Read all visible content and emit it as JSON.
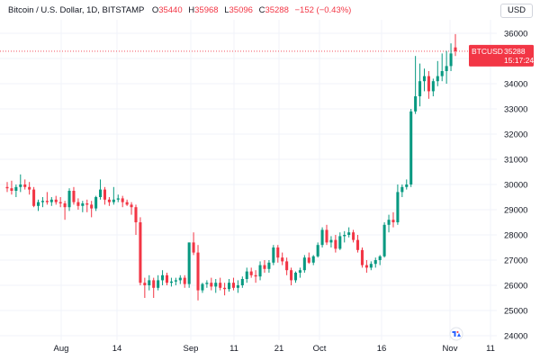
{
  "legend": {
    "symbol": "Bitcoin / U.S. Dollar, 1D, BITSTAMP",
    "open_label": "O",
    "open_value": "35440",
    "high_label": "H",
    "high_value": "35968",
    "low_label": "L",
    "low_value": "35096",
    "close_label": "C",
    "close_value": "35288",
    "change": "−152 (−0.43%)"
  },
  "currency_button": "USD",
  "price_tag": {
    "symbol": "BTCUSD",
    "price": "35288",
    "countdown": "15:17:24"
  },
  "colors": {
    "up": "#089981",
    "down": "#f23645",
    "grid": "#f0f3fa",
    "text": "#131722"
  },
  "icons": {
    "watermark": "tradingview-logo-icon"
  },
  "chart_data": {
    "type": "candlestick",
    "title": "Bitcoin / U.S. Dollar, 1D, BITSTAMP",
    "ylim": [
      24000,
      36600
    ],
    "y_ticks": [
      24000,
      25000,
      26000,
      27000,
      28000,
      29000,
      30000,
      31000,
      32000,
      33000,
      34000,
      35000,
      36000
    ],
    "x_ticks": [
      "Aug",
      "14",
      "Sep",
      "11",
      "21",
      "Oct",
      "16",
      "Nov",
      "11"
    ],
    "last_price": 35288,
    "grid": true,
    "candles": [
      [
        29900,
        30100,
        29700,
        29850
      ],
      [
        29850,
        30150,
        29600,
        29750
      ],
      [
        29750,
        30000,
        29500,
        29900
      ],
      [
        29900,
        30400,
        29700,
        30000
      ],
      [
        30000,
        30200,
        29800,
        29900
      ],
      [
        29900,
        30100,
        29600,
        29800
      ],
      [
        29800,
        29900,
        29100,
        29150
      ],
      [
        29150,
        29400,
        28950,
        29300
      ],
      [
        29300,
        29500,
        29100,
        29350
      ],
      [
        29350,
        29700,
        29200,
        29300
      ],
      [
        29300,
        29500,
        29150,
        29400
      ],
      [
        29400,
        29550,
        29200,
        29300
      ],
      [
        29300,
        29500,
        29100,
        29250
      ],
      [
        29250,
        29350,
        28600,
        29100
      ],
      [
        29100,
        29850,
        28950,
        29750
      ],
      [
        29750,
        29900,
        29200,
        29300
      ],
      [
        29300,
        29450,
        29000,
        29150
      ],
      [
        29150,
        29350,
        28900,
        29250
      ],
      [
        29250,
        29400,
        28900,
        29200
      ],
      [
        29200,
        29350,
        28700,
        29050
      ],
      [
        29050,
        29550,
        28950,
        29500
      ],
      [
        29500,
        30200,
        29400,
        29800
      ],
      [
        29800,
        29900,
        29200,
        29400
      ],
      [
        29400,
        29500,
        29150,
        29300
      ],
      [
        29300,
        29900,
        29200,
        29400
      ],
      [
        29400,
        29600,
        29300,
        29450
      ],
      [
        29450,
        29550,
        29100,
        29300
      ],
      [
        29300,
        29400,
        29150,
        29200
      ],
      [
        29200,
        29300,
        28800,
        29100
      ],
      [
        29100,
        29200,
        28000,
        28500
      ],
      [
        28500,
        28700,
        26000,
        26100
      ],
      [
        26100,
        26300,
        25500,
        26000
      ],
      [
        26000,
        26400,
        25800,
        26200
      ],
      [
        26200,
        26300,
        25500,
        25900
      ],
      [
        25900,
        26400,
        25800,
        26200
      ],
      [
        26200,
        26600,
        26000,
        26400
      ],
      [
        26400,
        26500,
        26000,
        26100
      ],
      [
        26100,
        26300,
        25950,
        26150
      ],
      [
        26150,
        26300,
        26000,
        26200
      ],
      [
        26200,
        26400,
        26050,
        26300
      ],
      [
        26300,
        26400,
        25900,
        26050
      ],
      [
        26050,
        27700,
        25900,
        27700
      ],
      [
        27700,
        28100,
        27200,
        27300
      ],
      [
        27300,
        27600,
        25400,
        25800
      ],
      [
        25800,
        26100,
        25700,
        26050
      ],
      [
        26050,
        26200,
        25900,
        26100
      ],
      [
        26100,
        26300,
        25800,
        25950
      ],
      [
        25950,
        26250,
        25700,
        26100
      ],
      [
        26100,
        26300,
        25800,
        25900
      ],
      [
        25900,
        26100,
        25600,
        25850
      ],
      [
        25850,
        26250,
        25750,
        26100
      ],
      [
        26100,
        26300,
        25800,
        25900
      ],
      [
        25900,
        26200,
        25700,
        26000
      ],
      [
        26000,
        26350,
        25900,
        26250
      ],
      [
        26250,
        26700,
        26100,
        26550
      ],
      [
        26550,
        26700,
        26300,
        26400
      ],
      [
        26400,
        26600,
        26100,
        26350
      ],
      [
        26350,
        26950,
        26200,
        26800
      ],
      [
        26800,
        27000,
        26500,
        26650
      ],
      [
        26650,
        27000,
        26500,
        26900
      ],
      [
        26900,
        27600,
        26800,
        27500
      ],
      [
        27500,
        27600,
        26900,
        27100
      ],
      [
        27100,
        27300,
        26800,
        26950
      ],
      [
        26950,
        27100,
        26400,
        26600
      ],
      [
        26600,
        26700,
        26000,
        26200
      ],
      [
        26200,
        26550,
        26100,
        26500
      ],
      [
        26500,
        26700,
        26300,
        26600
      ],
      [
        26600,
        27200,
        26500,
        27100
      ],
      [
        27100,
        27300,
        26850,
        26900
      ],
      [
        26900,
        27200,
        26800,
        27150
      ],
      [
        27150,
        27700,
        27100,
        27600
      ],
      [
        27600,
        28300,
        27500,
        28200
      ],
      [
        28200,
        28400,
        27600,
        27700
      ],
      [
        27700,
        27950,
        27500,
        27800
      ],
      [
        27800,
        28000,
        27300,
        27450
      ],
      [
        27450,
        28100,
        27400,
        27950
      ],
      [
        27950,
        28150,
        27700,
        28000
      ],
      [
        28000,
        28300,
        27900,
        28100
      ],
      [
        28100,
        28200,
        27700,
        27800
      ],
      [
        27800,
        28000,
        27300,
        27400
      ],
      [
        27400,
        27500,
        26700,
        26800
      ],
      [
        26800,
        27000,
        26500,
        26700
      ],
      [
        26700,
        26950,
        26600,
        26850
      ],
      [
        26850,
        27100,
        26700,
        27000
      ],
      [
        27000,
        27200,
        26800,
        27150
      ],
      [
        27150,
        28500,
        27100,
        28400
      ],
      [
        28400,
        28800,
        28100,
        28600
      ],
      [
        28600,
        28900,
        28300,
        28500
      ],
      [
        28500,
        30000,
        28400,
        29700
      ],
      [
        29700,
        30000,
        29500,
        29900
      ],
      [
        29900,
        30200,
        29800,
        30000
      ],
      [
        30000,
        33000,
        29900,
        32900
      ],
      [
        32900,
        35100,
        32800,
        33500
      ],
      [
        33500,
        34800,
        33100,
        34100
      ],
      [
        34100,
        34600,
        33700,
        34300
      ],
      [
        34300,
        34500,
        33400,
        33700
      ],
      [
        33700,
        34200,
        33500,
        34100
      ],
      [
        34100,
        34900,
        33900,
        34300
      ],
      [
        34300,
        35200,
        34100,
        34500
      ],
      [
        34500,
        35300,
        34000,
        34700
      ],
      [
        34700,
        35600,
        34500,
        35200
      ],
      [
        35440,
        35968,
        35096,
        35288
      ]
    ]
  }
}
